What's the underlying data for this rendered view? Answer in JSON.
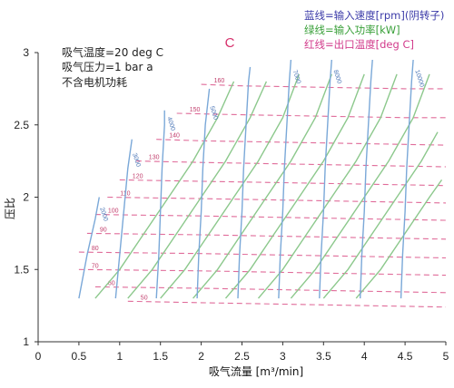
{
  "chart_data": {
    "type": "line",
    "title": "C",
    "xlabel": "吸气流量 [m³/min]",
    "ylabel": "压比",
    "xlim": [
      0,
      5
    ],
    "ylim": [
      1,
      3
    ],
    "xticks": [
      0,
      0.5,
      1,
      1.5,
      2,
      2.5,
      3,
      3.5,
      4,
      4.5,
      5
    ],
    "yticks": [
      1,
      1.5,
      2,
      2.5,
      3
    ],
    "xtick_labels": [
      "0",
      "0.5",
      "1",
      "1.5",
      "2",
      "2.5",
      "3",
      "3.5",
      "4",
      "4.5",
      "5"
    ],
    "ytick_labels": [
      "1",
      "1.5",
      "2",
      "2.5",
      "3"
    ],
    "notes": [
      "吸气温度=20 deg C",
      "吸气压力=1 bar a",
      "不含电机功耗"
    ],
    "legend": [
      {
        "text": "蓝线=输入速度[rpm](阴转子)",
        "color": "#3b3aa8"
      },
      {
        "text": "绿线=输入功率[kW]",
        "color": "#3aa03a"
      },
      {
        "text": "红线=出口温度[deg C]",
        "color": "#d23c8c"
      }
    ],
    "legend_position": "top-right",
    "series": [
      {
        "group": "speed",
        "name": "2000",
        "color": "#7aa8d8",
        "label": "2000",
        "points": [
          [
            0.5,
            1.3
          ],
          [
            0.55,
            1.45
          ],
          [
            0.6,
            1.6
          ],
          [
            0.7,
            1.85
          ],
          [
            0.75,
            2.0
          ]
        ]
      },
      {
        "group": "speed",
        "name": "3000",
        "color": "#7aa8d8",
        "label": "3000",
        "points": [
          [
            0.95,
            1.3
          ],
          [
            1.0,
            1.6
          ],
          [
            1.05,
            1.9
          ],
          [
            1.1,
            2.2
          ],
          [
            1.15,
            2.4
          ]
        ]
      },
      {
        "group": "speed",
        "name": "4000",
        "color": "#7aa8d8",
        "label": "4000",
        "points": [
          [
            1.45,
            1.3
          ],
          [
            1.48,
            1.6
          ],
          [
            1.5,
            1.9
          ],
          [
            1.52,
            2.2
          ],
          [
            1.55,
            2.5
          ],
          [
            1.55,
            2.6
          ]
        ]
      },
      {
        "group": "speed",
        "name": "5000",
        "color": "#7aa8d8",
        "label": "5000",
        "points": [
          [
            1.95,
            1.3
          ],
          [
            1.97,
            1.6
          ],
          [
            2.0,
            1.9
          ],
          [
            2.02,
            2.2
          ],
          [
            2.05,
            2.5
          ],
          [
            2.1,
            2.75
          ]
        ]
      },
      {
        "group": "speed",
        "name": "6000",
        "color": "#7aa8d8",
        "label": "",
        "points": [
          [
            2.45,
            1.3
          ],
          [
            2.47,
            1.6
          ],
          [
            2.5,
            1.9
          ],
          [
            2.52,
            2.2
          ],
          [
            2.55,
            2.5
          ],
          [
            2.58,
            2.8
          ],
          [
            2.6,
            2.9
          ]
        ]
      },
      {
        "group": "speed",
        "name": "7000",
        "color": "#7aa8d8",
        "label": "7000",
        "points": [
          [
            2.95,
            1.3
          ],
          [
            2.97,
            1.6
          ],
          [
            3.0,
            1.9
          ],
          [
            3.02,
            2.2
          ],
          [
            3.05,
            2.5
          ],
          [
            3.08,
            2.8
          ],
          [
            3.1,
            2.95
          ]
        ]
      },
      {
        "group": "speed",
        "name": "8000",
        "color": "#7aa8d8",
        "label": "8000",
        "points": [
          [
            3.45,
            1.3
          ],
          [
            3.47,
            1.6
          ],
          [
            3.5,
            1.9
          ],
          [
            3.52,
            2.2
          ],
          [
            3.55,
            2.5
          ],
          [
            3.58,
            2.8
          ],
          [
            3.6,
            2.95
          ]
        ]
      },
      {
        "group": "speed",
        "name": "9000",
        "color": "#7aa8d8",
        "label": "",
        "points": [
          [
            3.95,
            1.3
          ],
          [
            3.97,
            1.6
          ],
          [
            4.0,
            1.9
          ],
          [
            4.02,
            2.2
          ],
          [
            4.05,
            2.5
          ],
          [
            4.08,
            2.8
          ],
          [
            4.1,
            2.95
          ]
        ]
      },
      {
        "group": "speed",
        "name": "10000",
        "color": "#7aa8d8",
        "label": "10000",
        "points": [
          [
            4.45,
            1.3
          ],
          [
            4.47,
            1.6
          ],
          [
            4.5,
            1.9
          ],
          [
            4.52,
            2.2
          ],
          [
            4.55,
            2.5
          ],
          [
            4.58,
            2.8
          ],
          [
            4.6,
            2.95
          ]
        ]
      },
      {
        "group": "power",
        "name": "p1",
        "color": "#8cc88c",
        "label": "",
        "points": [
          [
            0.7,
            1.3
          ],
          [
            1.0,
            1.5
          ],
          [
            1.3,
            1.75
          ],
          [
            1.6,
            2.0
          ],
          [
            1.9,
            2.25
          ],
          [
            2.2,
            2.55
          ],
          [
            2.4,
            2.8
          ]
        ]
      },
      {
        "group": "power",
        "name": "p2",
        "color": "#8cc88c",
        "label": "",
        "points": [
          [
            1.1,
            1.3
          ],
          [
            1.4,
            1.5
          ],
          [
            1.7,
            1.75
          ],
          [
            2.0,
            2.0
          ],
          [
            2.3,
            2.25
          ],
          [
            2.6,
            2.55
          ],
          [
            2.8,
            2.8
          ]
        ]
      },
      {
        "group": "power",
        "name": "p3",
        "color": "#8cc88c",
        "label": "",
        "points": [
          [
            1.5,
            1.3
          ],
          [
            1.8,
            1.5
          ],
          [
            2.1,
            1.75
          ],
          [
            2.4,
            2.0
          ],
          [
            2.7,
            2.25
          ],
          [
            3.0,
            2.55
          ],
          [
            3.2,
            2.85
          ]
        ]
      },
      {
        "group": "power",
        "name": "p4",
        "color": "#8cc88c",
        "label": "",
        "points": [
          [
            1.9,
            1.3
          ],
          [
            2.2,
            1.5
          ],
          [
            2.5,
            1.75
          ],
          [
            2.8,
            2.0
          ],
          [
            3.1,
            2.25
          ],
          [
            3.4,
            2.55
          ],
          [
            3.6,
            2.85
          ]
        ]
      },
      {
        "group": "power",
        "name": "p5",
        "color": "#8cc88c",
        "label": "",
        "points": [
          [
            2.3,
            1.3
          ],
          [
            2.6,
            1.5
          ],
          [
            2.9,
            1.75
          ],
          [
            3.2,
            2.0
          ],
          [
            3.5,
            2.25
          ],
          [
            3.8,
            2.55
          ],
          [
            4.0,
            2.85
          ]
        ]
      },
      {
        "group": "power",
        "name": "p6",
        "color": "#8cc88c",
        "label": "",
        "points": [
          [
            2.7,
            1.3
          ],
          [
            3.0,
            1.5
          ],
          [
            3.3,
            1.75
          ],
          [
            3.6,
            2.0
          ],
          [
            3.9,
            2.25
          ],
          [
            4.2,
            2.55
          ],
          [
            4.4,
            2.85
          ]
        ]
      },
      {
        "group": "power",
        "name": "p7",
        "color": "#8cc88c",
        "label": "",
        "points": [
          [
            3.1,
            1.3
          ],
          [
            3.4,
            1.5
          ],
          [
            3.7,
            1.75
          ],
          [
            4.0,
            2.0
          ],
          [
            4.3,
            2.25
          ],
          [
            4.6,
            2.55
          ],
          [
            4.8,
            2.85
          ]
        ]
      },
      {
        "group": "power",
        "name": "p8",
        "color": "#8cc88c",
        "label": "",
        "points": [
          [
            3.5,
            1.3
          ],
          [
            3.8,
            1.5
          ],
          [
            4.1,
            1.75
          ],
          [
            4.4,
            2.0
          ],
          [
            4.7,
            2.25
          ],
          [
            4.9,
            2.45
          ]
        ]
      },
      {
        "group": "power",
        "name": "p9",
        "color": "#8cc88c",
        "label": "",
        "points": [
          [
            3.9,
            1.3
          ],
          [
            4.2,
            1.5
          ],
          [
            4.5,
            1.75
          ],
          [
            4.8,
            2.0
          ],
          [
            4.95,
            2.12
          ]
        ]
      },
      {
        "group": "temperature",
        "name": "50",
        "color": "#e06c9a",
        "label": "50",
        "points": [
          [
            1.1,
            1.28
          ],
          [
            2.0,
            1.27
          ],
          [
            3.0,
            1.26
          ],
          [
            4.0,
            1.25
          ],
          [
            5.0,
            1.24
          ]
        ]
      },
      {
        "group": "temperature",
        "name": "60",
        "color": "#e06c9a",
        "label": "60",
        "points": [
          [
            0.7,
            1.38
          ],
          [
            2.0,
            1.37
          ],
          [
            3.0,
            1.36
          ],
          [
            4.0,
            1.35
          ],
          [
            5.0,
            1.34
          ]
        ]
      },
      {
        "group": "temperature",
        "name": "70",
        "color": "#e06c9a",
        "label": "70",
        "points": [
          [
            0.5,
            1.5
          ],
          [
            2.0,
            1.49
          ],
          [
            3.0,
            1.48
          ],
          [
            4.0,
            1.47
          ],
          [
            5.0,
            1.46
          ]
        ]
      },
      {
        "group": "temperature",
        "name": "80",
        "color": "#e06c9a",
        "label": "80",
        "points": [
          [
            0.5,
            1.62
          ],
          [
            2.0,
            1.61
          ],
          [
            3.0,
            1.6
          ],
          [
            4.0,
            1.59
          ],
          [
            5.0,
            1.58
          ]
        ]
      },
      {
        "group": "temperature",
        "name": "90",
        "color": "#e06c9a",
        "label": "90",
        "points": [
          [
            0.6,
            1.75
          ],
          [
            2.0,
            1.74
          ],
          [
            3.0,
            1.73
          ],
          [
            4.0,
            1.72
          ],
          [
            5.0,
            1.71
          ]
        ]
      },
      {
        "group": "temperature",
        "name": "100",
        "color": "#e06c9a",
        "label": "100",
        "points": [
          [
            0.7,
            1.88
          ],
          [
            2.0,
            1.87
          ],
          [
            3.0,
            1.86
          ],
          [
            4.0,
            1.85
          ],
          [
            5.0,
            1.84
          ]
        ]
      },
      {
        "group": "temperature",
        "name": "110",
        "color": "#e06c9a",
        "label": "110",
        "points": [
          [
            0.85,
            2.0
          ],
          [
            2.0,
            1.99
          ],
          [
            3.0,
            1.98
          ],
          [
            4.0,
            1.97
          ],
          [
            5.0,
            1.96
          ]
        ]
      },
      {
        "group": "temperature",
        "name": "120",
        "color": "#e06c9a",
        "label": "120",
        "points": [
          [
            1.0,
            2.12
          ],
          [
            2.0,
            2.11
          ],
          [
            3.0,
            2.1
          ],
          [
            4.0,
            2.09
          ],
          [
            5.0,
            2.08
          ]
        ]
      },
      {
        "group": "temperature",
        "name": "130",
        "color": "#e06c9a",
        "label": "130",
        "points": [
          [
            1.2,
            2.25
          ],
          [
            2.0,
            2.24
          ],
          [
            3.0,
            2.23
          ],
          [
            4.0,
            2.22
          ],
          [
            5.0,
            2.21
          ]
        ]
      },
      {
        "group": "temperature",
        "name": "140",
        "color": "#e06c9a",
        "label": "140",
        "points": [
          [
            1.45,
            2.4
          ],
          [
            2.0,
            2.39
          ],
          [
            3.0,
            2.38
          ],
          [
            4.0,
            2.37
          ],
          [
            5.0,
            2.36
          ]
        ]
      },
      {
        "group": "temperature",
        "name": "150",
        "color": "#e06c9a",
        "label": "150",
        "points": [
          [
            1.7,
            2.58
          ],
          [
            2.5,
            2.57
          ],
          [
            3.5,
            2.56
          ],
          [
            4.5,
            2.55
          ],
          [
            5.0,
            2.55
          ]
        ]
      },
      {
        "group": "temperature",
        "name": "160",
        "color": "#e06c9a",
        "label": "160",
        "points": [
          [
            2.0,
            2.78
          ],
          [
            2.5,
            2.77
          ],
          [
            3.5,
            2.76
          ],
          [
            4.5,
            2.75
          ],
          [
            5.0,
            2.75
          ]
        ]
      }
    ]
  }
}
